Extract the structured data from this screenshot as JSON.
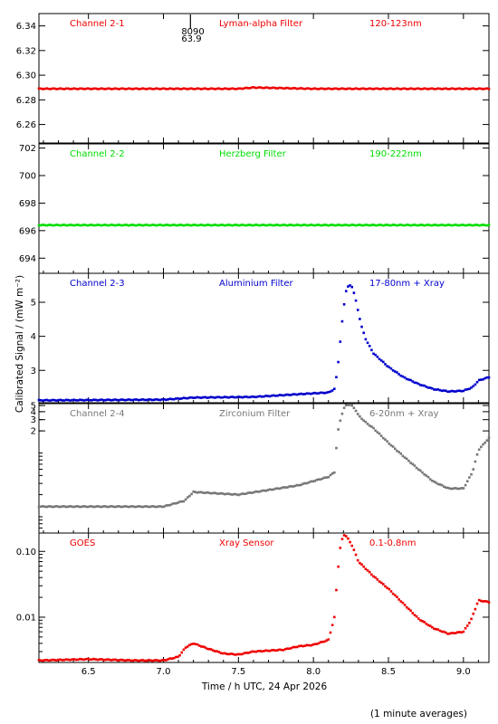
{
  "figure": {
    "xlabel": "Time / h UTC, 24 Apr 2026",
    "ylabel": "Calibrated Signal / (mW m⁻²)",
    "footnote": "(1 minute averages)",
    "xlim": [
      6.17,
      9.17
    ],
    "xticks": [
      6.5,
      7.0,
      7.5,
      8.0,
      8.5,
      9.0
    ],
    "xtick_labels": [
      "6.5",
      "7.0",
      "7.5",
      "8.0",
      "8.5",
      "9.0"
    ],
    "marker_annotation": {
      "x": 7.18,
      "line1": "8090",
      "line2": "63.9"
    }
  },
  "chart_data": [
    {
      "type": "scatter",
      "channel": "Channel 2-1",
      "filter": "Lyman-alpha Filter",
      "band": "120-123nm",
      "color": "#ee0000",
      "ylim": [
        6.245,
        6.35
      ],
      "yticks": [
        6.26,
        6.28,
        6.3,
        6.32,
        6.34
      ],
      "ytick_labels": [
        "6.26",
        "6.28",
        "6.30",
        "6.32",
        "6.34"
      ],
      "yscale": "linear",
      "x": [
        6.17,
        7.0,
        7.5,
        7.6,
        8.0,
        9.17
      ],
      "y": [
        6.289,
        6.289,
        6.289,
        6.29,
        6.289,
        6.289
      ]
    },
    {
      "type": "scatter",
      "channel": "Channel 2-2",
      "filter": "Herzberg Filter",
      "band": "190-222nm",
      "color": "#00dd00",
      "ylim": [
        692.9,
        702.3
      ],
      "yticks": [
        694,
        696,
        698,
        700,
        702
      ],
      "ytick_labels": [
        "694",
        "696",
        "698",
        "700",
        "702"
      ],
      "yscale": "linear",
      "x": [
        6.17,
        7.0,
        8.0,
        9.17
      ],
      "y": [
        696.4,
        696.4,
        696.4,
        696.4
      ]
    },
    {
      "type": "scatter",
      "channel": "Channel 2-3",
      "filter": "Aluminium Filter",
      "band": "17-80nm + Xray",
      "color": "#0000cc",
      "ylim": [
        2.05,
        5.85
      ],
      "yticks": [
        3,
        4,
        5
      ],
      "ytick_labels": [
        "3",
        "4",
        "5"
      ],
      "yscale": "linear",
      "x": [
        6.17,
        7.0,
        7.2,
        7.6,
        7.9,
        8.1,
        8.14,
        8.16,
        8.18,
        8.2,
        8.22,
        8.24,
        8.26,
        8.28,
        8.3,
        8.32,
        8.35,
        8.4,
        8.5,
        8.6,
        8.7,
        8.8,
        8.9,
        9.0,
        9.06,
        9.1,
        9.17
      ],
      "y": [
        2.12,
        2.14,
        2.2,
        2.22,
        2.3,
        2.35,
        2.45,
        3.0,
        3.9,
        4.8,
        5.4,
        5.5,
        5.45,
        5.1,
        4.7,
        4.3,
        3.9,
        3.5,
        3.1,
        2.8,
        2.6,
        2.45,
        2.38,
        2.4,
        2.5,
        2.7,
        2.8
      ]
    },
    {
      "type": "scatter",
      "channel": "Channel 2-4",
      "filter": "Zirconium Filter",
      "band": "6-20nm + Xray",
      "color": "#777777",
      "ylim": [
        0.05,
        5.35
      ],
      "yticks": [
        2,
        3,
        4,
        5
      ],
      "ytick_labels": [
        "2",
        "3",
        "4",
        "5"
      ],
      "yscale": "log",
      "x": [
        6.17,
        7.0,
        7.14,
        7.2,
        7.5,
        7.9,
        8.1,
        8.14,
        8.16,
        8.18,
        8.2,
        8.22,
        8.24,
        8.26,
        8.28,
        8.3,
        8.35,
        8.4,
        8.5,
        8.6,
        8.7,
        8.8,
        8.9,
        9.0,
        9.06,
        9.1,
        9.17
      ],
      "y": [
        0.13,
        0.13,
        0.16,
        0.22,
        0.2,
        0.28,
        0.38,
        0.45,
        1.8,
        3.0,
        4.4,
        5.1,
        5.2,
        4.9,
        4.3,
        3.5,
        2.7,
        2.2,
        1.3,
        0.8,
        0.5,
        0.32,
        0.25,
        0.25,
        0.45,
        1.0,
        1.55
      ]
    },
    {
      "type": "scatter",
      "channel": "GOES",
      "filter": "Xray Sensor",
      "band": "0.1-0.8nm",
      "color": "#ee0000",
      "ylim": [
        0.00205,
        0.19
      ],
      "yticks": [
        0.01,
        0.1
      ],
      "ytick_labels": [
        "0.01",
        "0.10"
      ],
      "yscale": "log",
      "x": [
        6.17,
        6.5,
        6.8,
        7.0,
        7.1,
        7.15,
        7.2,
        7.3,
        7.4,
        7.5,
        7.6,
        7.7,
        7.8,
        7.9,
        8.0,
        8.1,
        8.14,
        8.16,
        8.18,
        8.2,
        8.22,
        8.26,
        8.3,
        8.4,
        8.5,
        8.6,
        8.7,
        8.8,
        8.9,
        9.0,
        9.05,
        9.1,
        9.17
      ],
      "y": [
        0.0022,
        0.0023,
        0.0022,
        0.0022,
        0.0025,
        0.0035,
        0.004,
        0.0033,
        0.0028,
        0.0027,
        0.003,
        0.0031,
        0.0032,
        0.0036,
        0.0038,
        0.0045,
        0.01,
        0.045,
        0.12,
        0.18,
        0.17,
        0.12,
        0.07,
        0.042,
        0.027,
        0.016,
        0.0095,
        0.0068,
        0.0056,
        0.006,
        0.009,
        0.018,
        0.017
      ]
    }
  ]
}
